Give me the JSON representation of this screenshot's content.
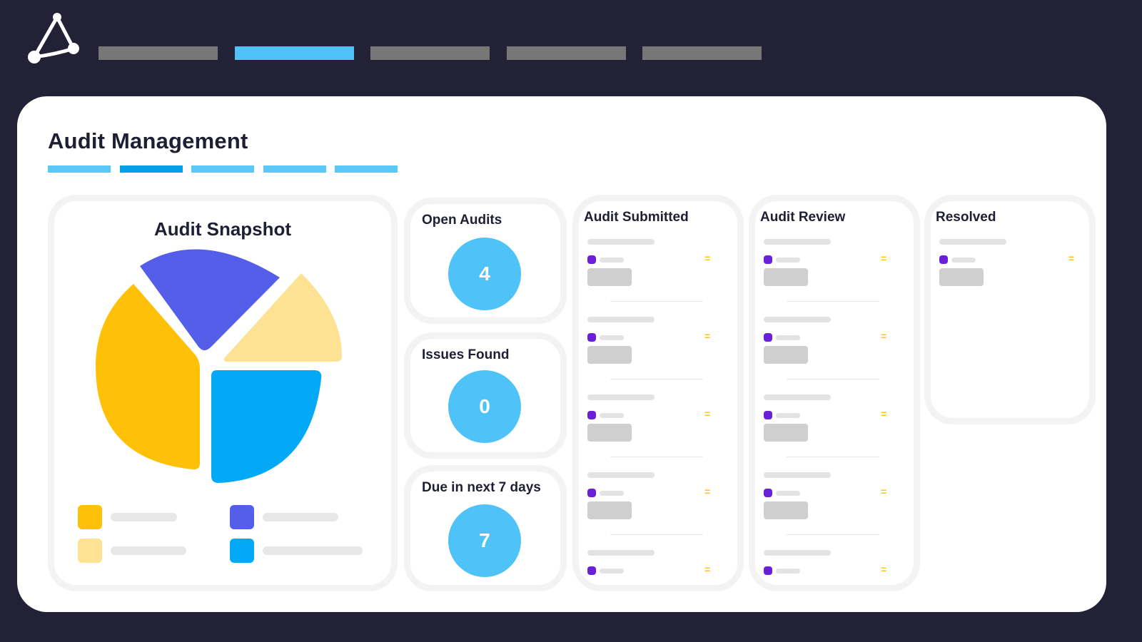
{
  "app": {
    "logo_icon": "triangle-network-logo",
    "nav_tabs": [
      {
        "label": "",
        "active": false
      },
      {
        "label": "",
        "active": true
      },
      {
        "label": "",
        "active": false
      },
      {
        "label": "",
        "active": false
      },
      {
        "label": "",
        "active": false
      }
    ]
  },
  "page": {
    "title": "Audit Management",
    "subtabs": [
      {
        "active": false
      },
      {
        "active": true
      },
      {
        "active": false
      },
      {
        "active": false
      },
      {
        "active": false
      }
    ]
  },
  "snapshot": {
    "title": "Audit Snapshot",
    "colors": {
      "yellow": "#ffc107",
      "indigo": "#555ee8",
      "light_yellow": "#fde293",
      "blue": "#03a9f4"
    }
  },
  "stats": {
    "open_audits": {
      "label": "Open Audits",
      "value": "4"
    },
    "issues_found": {
      "label": "Issues Found",
      "value": "0"
    },
    "due_next_7": {
      "label": "Due in next 7 days",
      "value": "7"
    }
  },
  "columns": {
    "submitted": {
      "title": "Audit Submitted"
    },
    "review": {
      "title": "Audit Review"
    },
    "resolved": {
      "title": "Resolved"
    }
  },
  "icons": {
    "handle": "="
  },
  "colors": {
    "background": "#222135",
    "accent": "#4fc3f7",
    "accent_dark": "#049fe8",
    "dot": "#6a1fd9",
    "handle": "#ffc31a"
  }
}
